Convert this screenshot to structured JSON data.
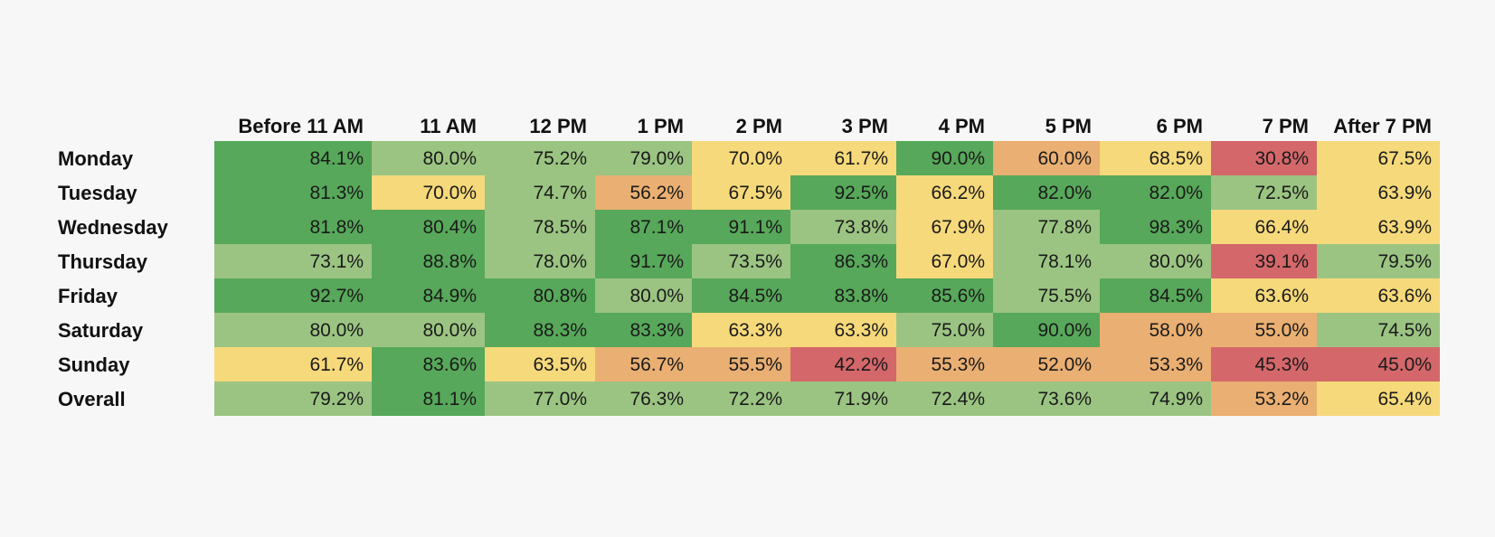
{
  "chart_data": {
    "type": "heatmap",
    "columns": [
      "Before 11 AM",
      "11 AM",
      "12 PM",
      "1 PM",
      "2 PM",
      "3 PM",
      "4 PM",
      "5 PM",
      "6 PM",
      "7 PM",
      "After 7 PM"
    ],
    "rows": [
      "Monday",
      "Tuesday",
      "Wednesday",
      "Thursday",
      "Friday",
      "Saturday",
      "Sunday",
      "Overall"
    ],
    "values": [
      [
        "84.1%",
        "80.0%",
        "75.2%",
        "79.0%",
        "70.0%",
        "61.7%",
        "90.0%",
        "60.0%",
        "68.5%",
        "30.8%",
        "67.5%"
      ],
      [
        "81.3%",
        "70.0%",
        "74.7%",
        "56.2%",
        "67.5%",
        "92.5%",
        "66.2%",
        "82.0%",
        "82.0%",
        "72.5%",
        "63.9%"
      ],
      [
        "81.8%",
        "80.4%",
        "78.5%",
        "87.1%",
        "91.1%",
        "73.8%",
        "67.9%",
        "77.8%",
        "98.3%",
        "66.4%",
        "63.9%"
      ],
      [
        "73.1%",
        "88.8%",
        "78.0%",
        "91.7%",
        "73.5%",
        "86.3%",
        "67.0%",
        "78.1%",
        "80.0%",
        "39.1%",
        "79.5%"
      ],
      [
        "92.7%",
        "84.9%",
        "80.8%",
        "80.0%",
        "84.5%",
        "83.8%",
        "85.6%",
        "75.5%",
        "84.5%",
        "63.6%",
        "63.6%"
      ],
      [
        "80.0%",
        "80.0%",
        "88.3%",
        "83.3%",
        "63.3%",
        "63.3%",
        "75.0%",
        "90.0%",
        "58.0%",
        "55.0%",
        "74.5%"
      ],
      [
        "61.7%",
        "83.6%",
        "63.5%",
        "56.7%",
        "55.5%",
        "42.2%",
        "55.3%",
        "52.0%",
        "53.3%",
        "45.3%",
        "45.0%"
      ],
      [
        "79.2%",
        "81.1%",
        "77.0%",
        "76.3%",
        "72.2%",
        "71.9%",
        "72.4%",
        "73.6%",
        "74.9%",
        "53.2%",
        "65.4%"
      ]
    ],
    "levels": [
      [
        "dark",
        "light",
        "light",
        "light",
        "yellow",
        "yellow",
        "dark",
        "orange",
        "yellow",
        "red",
        "yellow"
      ],
      [
        "dark",
        "yellow",
        "light",
        "orange",
        "yellow",
        "dark",
        "yellow",
        "dark",
        "dark",
        "light",
        "yellow"
      ],
      [
        "dark",
        "dark",
        "light",
        "dark",
        "dark",
        "light",
        "yellow",
        "light",
        "dark",
        "yellow",
        "yellow"
      ],
      [
        "light",
        "dark",
        "light",
        "dark",
        "light",
        "dark",
        "yellow",
        "light",
        "light",
        "red",
        "light"
      ],
      [
        "dark",
        "dark",
        "dark",
        "light",
        "dark",
        "dark",
        "dark",
        "light",
        "dark",
        "yellow",
        "yellow"
      ],
      [
        "light",
        "light",
        "dark",
        "dark",
        "yellow",
        "yellow",
        "light",
        "dark",
        "orange",
        "orange",
        "light"
      ],
      [
        "yellow",
        "dark",
        "yellow",
        "orange",
        "orange",
        "red",
        "orange",
        "orange",
        "orange",
        "red",
        "red"
      ],
      [
        "light",
        "dark",
        "light",
        "light",
        "light",
        "light",
        "light",
        "light",
        "light",
        "orange",
        "yellow"
      ]
    ],
    "colors": {
      "dark": "#57a85a",
      "light": "#9bc482",
      "yellow": "#f6d97a",
      "orange": "#eaaf72",
      "red": "#d4676a"
    }
  }
}
